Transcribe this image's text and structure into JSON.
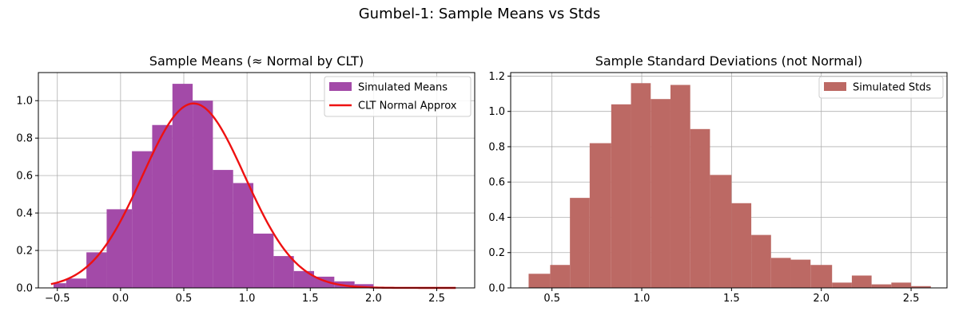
{
  "figure": {
    "title": "Gumbel-1: Sample Means vs Stds"
  },
  "chart_data": [
    {
      "type": "bar",
      "title": "Sample Means (≈ Normal by CLT)",
      "xlabel": "",
      "ylabel": "",
      "xlim": [
        -0.65,
        2.8
      ],
      "ylim": [
        0,
        1.15
      ],
      "xticks": [
        -0.5,
        0.0,
        0.5,
        1.0,
        1.5,
        2.0,
        2.5
      ],
      "xtick_labels": [
        "−0.5",
        "0.0",
        "0.5",
        "1.0",
        "1.5",
        "2.0",
        "2.5"
      ],
      "yticks": [
        0.0,
        0.2,
        0.4,
        0.6,
        0.8,
        1.0
      ],
      "ytick_labels": [
        "0.0",
        "0.2",
        "0.4",
        "0.6",
        "0.8",
        "1.0"
      ],
      "grid": true,
      "legend_position": "top-right",
      "histogram": {
        "name": "Simulated Means",
        "color": "#a34aa8",
        "bins": [
          [
            -0.53,
            -0.43,
            0.025
          ],
          [
            -0.43,
            -0.27,
            0.05
          ],
          [
            -0.27,
            -0.11,
            0.19
          ],
          [
            -0.11,
            0.09,
            0.42
          ],
          [
            0.09,
            0.25,
            0.73
          ],
          [
            0.25,
            0.41,
            0.87
          ],
          [
            0.41,
            0.57,
            1.09
          ],
          [
            0.57,
            0.73,
            1.0
          ],
          [
            0.73,
            0.89,
            0.63
          ],
          [
            0.89,
            1.05,
            0.56
          ],
          [
            1.05,
            1.21,
            0.29
          ],
          [
            1.21,
            1.37,
            0.17
          ],
          [
            1.37,
            1.53,
            0.09
          ],
          [
            1.53,
            1.69,
            0.06
          ],
          [
            1.69,
            1.85,
            0.035
          ],
          [
            1.85,
            2.0,
            0.02
          ]
        ]
      },
      "curve": {
        "name": "CLT Normal Approx",
        "color": "#ee1111",
        "mean": 0.577,
        "std": 0.405,
        "x_range": [
          -0.55,
          2.65
        ]
      }
    },
    {
      "type": "bar",
      "title": "Sample Standard Deviations (not Normal)",
      "xlabel": "",
      "ylabel": "",
      "xlim": [
        0.27,
        2.7
      ],
      "ylim": [
        0,
        1.22
      ],
      "xticks": [
        0.5,
        1.0,
        1.5,
        2.0,
        2.5
      ],
      "xtick_labels": [
        "0.5",
        "1.0",
        "1.5",
        "2.0",
        "2.5"
      ],
      "yticks": [
        0.0,
        0.2,
        0.4,
        0.6,
        0.8,
        1.0,
        1.2
      ],
      "ytick_labels": [
        "0.0",
        "0.2",
        "0.4",
        "0.6",
        "0.8",
        "1.0",
        "1.2"
      ],
      "grid": true,
      "legend_position": "top-right",
      "histogram": {
        "name": "Simulated Stds",
        "color": "#bc6964",
        "bins": [
          [
            0.37,
            0.49,
            0.08
          ],
          [
            0.49,
            0.6,
            0.13
          ],
          [
            0.6,
            0.71,
            0.51
          ],
          [
            0.71,
            0.83,
            0.82
          ],
          [
            0.83,
            0.94,
            1.04
          ],
          [
            0.94,
            1.05,
            1.16
          ],
          [
            1.05,
            1.16,
            1.07
          ],
          [
            1.16,
            1.27,
            1.15
          ],
          [
            1.27,
            1.38,
            0.9
          ],
          [
            1.38,
            1.5,
            0.64
          ],
          [
            1.5,
            1.61,
            0.48
          ],
          [
            1.61,
            1.72,
            0.3
          ],
          [
            1.72,
            1.83,
            0.17
          ],
          [
            1.83,
            1.94,
            0.16
          ],
          [
            1.94,
            2.06,
            0.13
          ],
          [
            2.06,
            2.17,
            0.03
          ],
          [
            2.17,
            2.28,
            0.07
          ],
          [
            2.28,
            2.39,
            0.02
          ],
          [
            2.39,
            2.5,
            0.03
          ],
          [
            2.5,
            2.61,
            0.01
          ]
        ]
      }
    }
  ]
}
